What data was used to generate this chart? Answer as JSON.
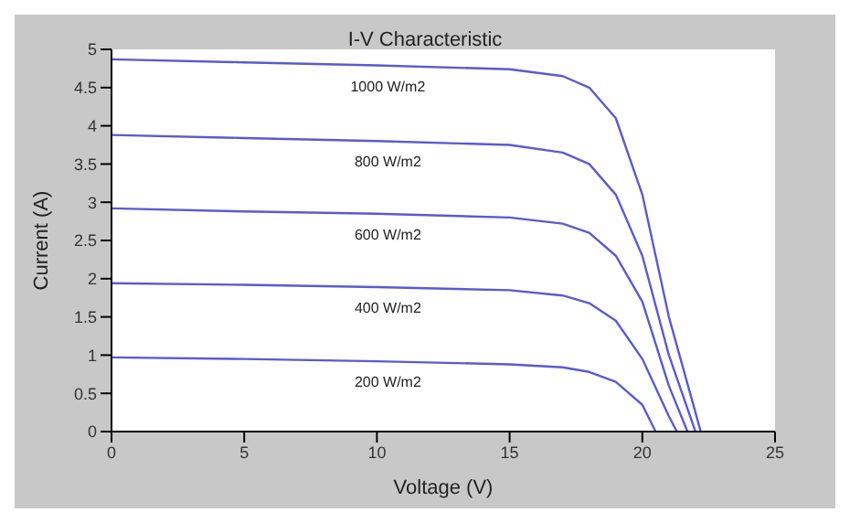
{
  "chart_data": {
    "type": "line",
    "title": "I-V Characteristic",
    "xlabel": "Voltage (V)",
    "ylabel": "Current (A)",
    "xlim": [
      0,
      25
    ],
    "xticks": [
      0,
      5,
      10,
      15,
      20,
      25
    ],
    "ylim": [
      0,
      5
    ],
    "yticks": [
      0,
      0.5,
      1,
      1.5,
      2,
      2.5,
      3,
      3.5,
      4,
      4.5,
      5
    ],
    "grid": false,
    "marker": "none",
    "line_style": "solid",
    "series": [
      {
        "name": "1000 W/m2",
        "color": "#5a5ad2",
        "x": [
          0,
          5,
          10,
          15,
          17,
          18,
          19,
          20,
          21,
          22.2
        ],
        "values": [
          4.87,
          4.83,
          4.79,
          4.74,
          4.65,
          4.5,
          4.1,
          3.1,
          1.5,
          0
        ]
      },
      {
        "name": "800 W/m2",
        "color": "#5a5ad2",
        "x": [
          0,
          5,
          10,
          15,
          17,
          18,
          19,
          20,
          21,
          22
        ],
        "values": [
          3.88,
          3.84,
          3.8,
          3.75,
          3.65,
          3.5,
          3.1,
          2.3,
          1,
          0
        ]
      },
      {
        "name": "600 W/m2",
        "color": "#5a5ad2",
        "x": [
          0,
          5,
          10,
          15,
          17,
          18,
          19,
          20,
          21,
          21.7
        ],
        "values": [
          2.92,
          2.88,
          2.85,
          2.8,
          2.72,
          2.6,
          2.3,
          1.7,
          0.6,
          0
        ]
      },
      {
        "name": "400 W/m2",
        "color": "#5a5ad2",
        "x": [
          0,
          5,
          10,
          15,
          17,
          18,
          19,
          20,
          21,
          21.3
        ],
        "values": [
          1.94,
          1.92,
          1.89,
          1.85,
          1.78,
          1.68,
          1.45,
          0.95,
          0.2,
          0
        ]
      },
      {
        "name": "200 W/m2",
        "color": "#5a5ad2",
        "x": [
          0,
          5,
          10,
          15,
          17,
          18,
          19,
          20,
          20.5
        ],
        "values": [
          0.97,
          0.95,
          0.92,
          0.88,
          0.84,
          0.78,
          0.65,
          0.35,
          0
        ]
      }
    ]
  }
}
